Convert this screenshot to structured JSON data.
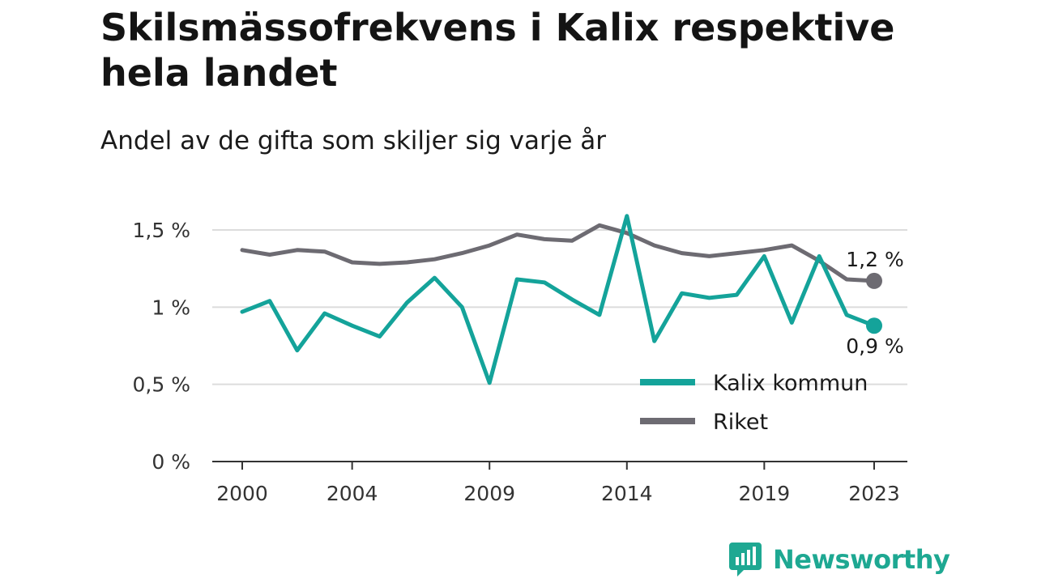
{
  "title": "Skilsmässofrekvens i Kalix respektive hela landet",
  "subtitle": "Andel av de gifta som skiljer sig varje år",
  "brand": {
    "name": "Newsworthy",
    "icon": "bar-chart-speech-bubble-icon",
    "color": "#1ea892"
  },
  "chart_data": {
    "type": "line",
    "title": "Skilsmässofrekvens i Kalix respektive hela landet",
    "subtitle": "Andel av de gifta som skiljer sig varje år",
    "x": [
      2000,
      2001,
      2002,
      2003,
      2004,
      2005,
      2006,
      2007,
      2008,
      2009,
      2010,
      2011,
      2012,
      2013,
      2014,
      2015,
      2016,
      2017,
      2018,
      2019,
      2020,
      2021,
      2022,
      2023
    ],
    "x_ticks": [
      2000,
      2004,
      2009,
      2014,
      2019,
      2023
    ],
    "x_tick_labels": [
      "2000",
      "2004",
      "2009",
      "2014",
      "2019",
      "2023"
    ],
    "ylim": [
      0,
      1.6
    ],
    "y_ticks": [
      0,
      0.5,
      1,
      1.5
    ],
    "y_tick_labels": [
      "0 %",
      "0,5 %",
      "1 %",
      "1,5 %"
    ],
    "grid": true,
    "legend_position": "bottom-right",
    "series": [
      {
        "name": "Kalix kommun",
        "color": "#14a39a",
        "values": [
          0.97,
          1.04,
          0.72,
          0.96,
          0.88,
          0.81,
          1.03,
          1.19,
          1.0,
          0.51,
          1.18,
          1.16,
          1.05,
          0.95,
          1.59,
          0.78,
          1.09,
          1.06,
          1.08,
          1.33,
          0.9,
          1.33,
          0.95,
          0.88
        ],
        "end_label": "0,9 %"
      },
      {
        "name": "Riket",
        "color": "#6d6b72",
        "values": [
          1.37,
          1.34,
          1.37,
          1.36,
          1.29,
          1.28,
          1.29,
          1.31,
          1.35,
          1.4,
          1.47,
          1.44,
          1.43,
          1.53,
          1.48,
          1.4,
          1.35,
          1.33,
          1.35,
          1.37,
          1.4,
          1.3,
          1.18,
          1.17
        ],
        "end_label": "1,2 %"
      }
    ]
  }
}
